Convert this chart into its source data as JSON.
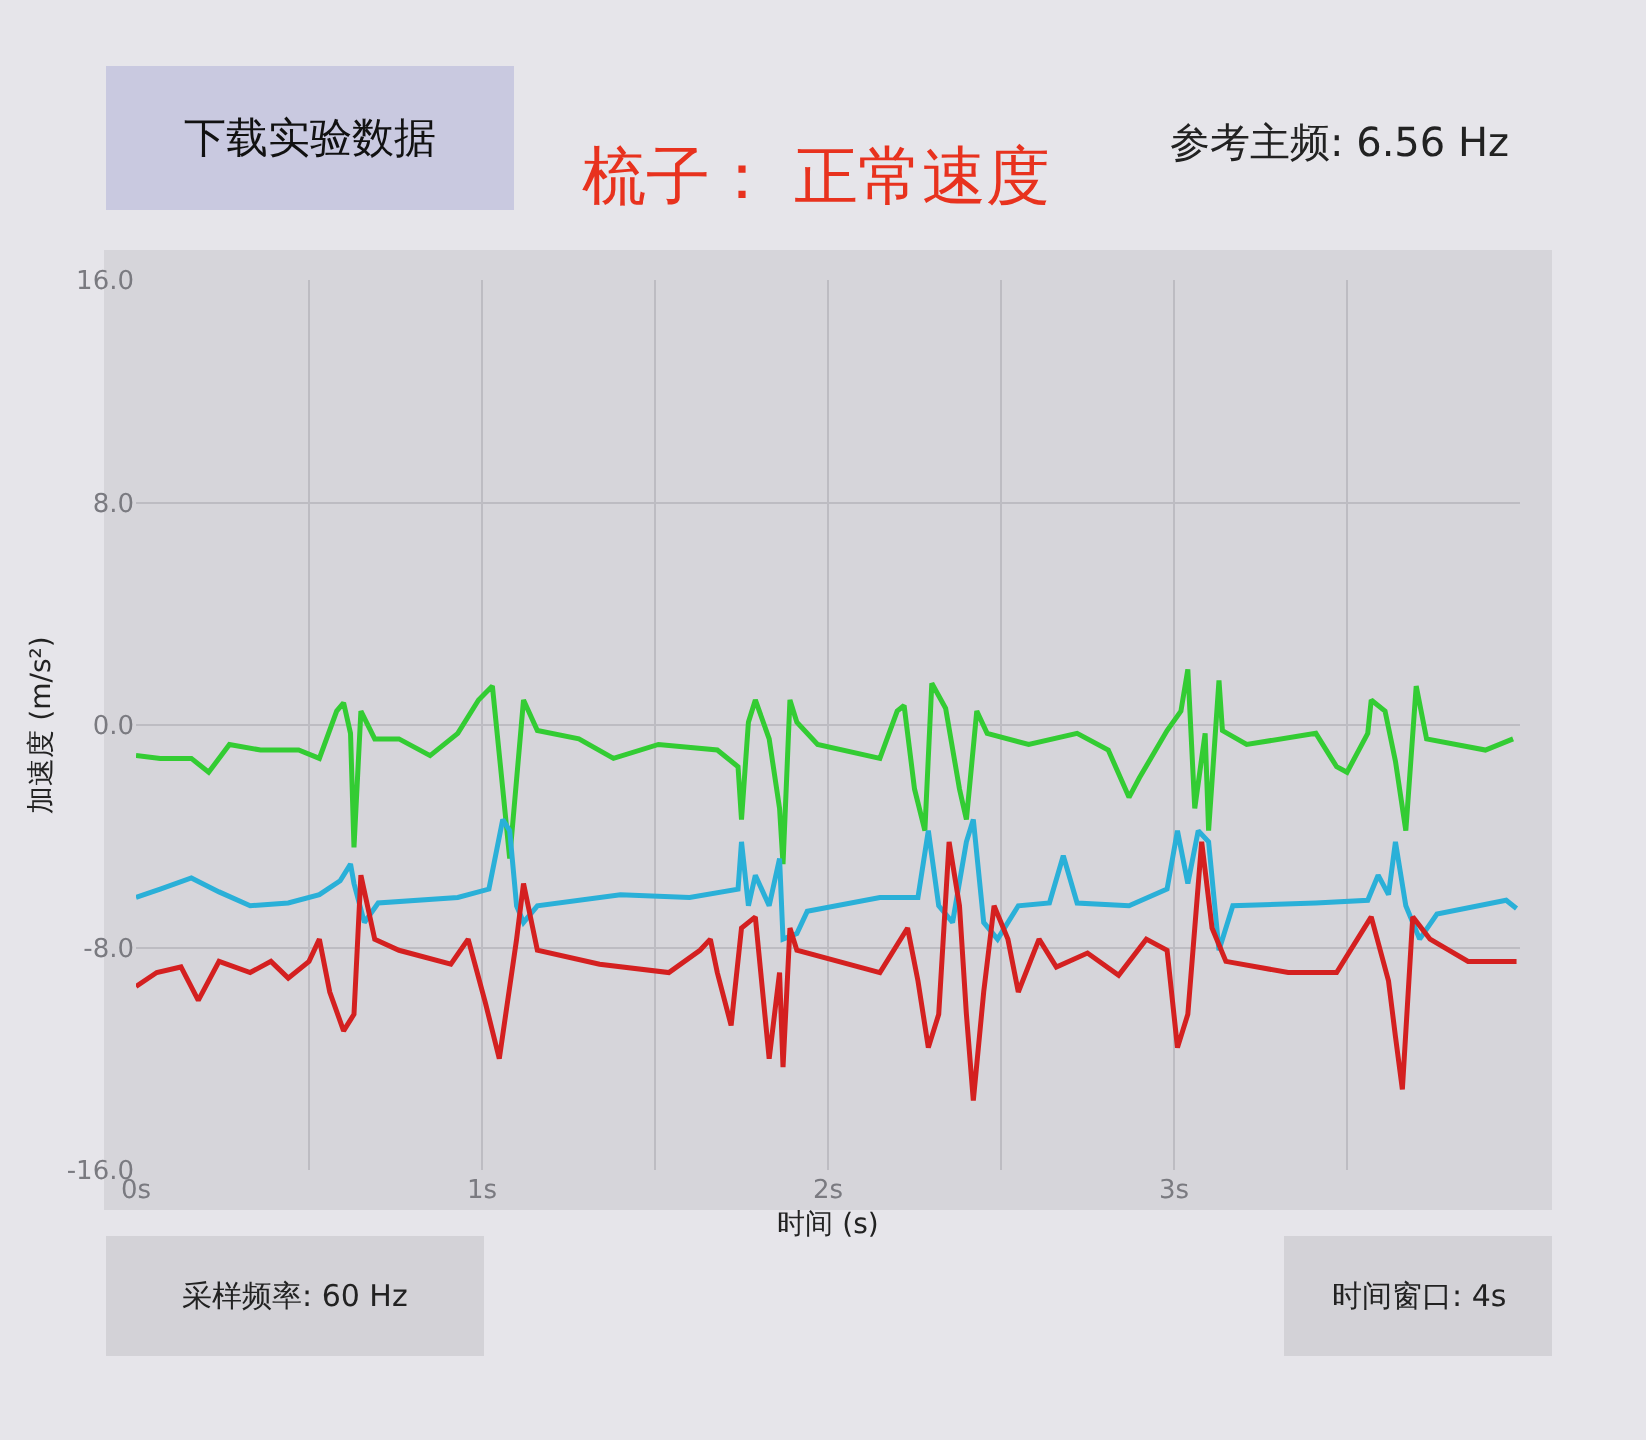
{
  "chart_data": {
    "type": "line",
    "title": "梳子： 正常速度",
    "xlabel": "时间 (s)",
    "ylabel": "加速度 (m/s²)",
    "annotations": [
      "下载实验数据",
      "参考主频: 6.56 Hz",
      "采样频率: 60 Hz",
      "时间窗口: 4s"
    ],
    "xlim": [
      0,
      4
    ],
    "ylim": [
      -16,
      16
    ],
    "xticks": [
      {
        "value": 0,
        "label": "0s"
      },
      {
        "value": 0.5,
        "label": null
      },
      {
        "value": 1,
        "label": "1s"
      },
      {
        "value": 1.5,
        "label": null
      },
      {
        "value": 2,
        "label": "2s"
      },
      {
        "value": 2.5,
        "label": null
      },
      {
        "value": 3,
        "label": "3s"
      },
      {
        "value": 3.5,
        "label": null
      }
    ],
    "yticks": [
      {
        "value": 16,
        "label": "16.0"
      },
      {
        "value": 8,
        "label": "8.0"
      },
      {
        "value": 0,
        "label": "0.0"
      },
      {
        "value": -8,
        "label": "-8.0"
      },
      {
        "value": -16,
        "label": "-16.0"
      }
    ],
    "grid": true,
    "marker": "none",
    "line_style": "solid",
    "series": [
      {
        "color": "#33cc33",
        "x": [
          0,
          0.07,
          0.16,
          0.21,
          0.27,
          0.36,
          0.47,
          0.53,
          0.58,
          0.6,
          0.62,
          0.63,
          0.65,
          0.69,
          0.76,
          0.85,
          0.93,
          0.99,
          1.03,
          1.06,
          1.08,
          1.12,
          1.16,
          1.28,
          1.38,
          1.51,
          1.68,
          1.74,
          1.75,
          1.77,
          1.79,
          1.83,
          1.86,
          1.87,
          1.89,
          1.91,
          1.97,
          2.15,
          2.2,
          2.22,
          2.25,
          2.28,
          2.3,
          2.34,
          2.38,
          2.4,
          2.43,
          2.46,
          2.58,
          2.72,
          2.81,
          2.87,
          2.9,
          2.98,
          3.02,
          3.04,
          3.06,
          3.09,
          3.1,
          3.13,
          3.14,
          3.21,
          3.41,
          3.47,
          3.5,
          3.56,
          3.57,
          3.61,
          3.64,
          3.67,
          3.7,
          3.73,
          3.9,
          3.98
        ],
        "values": [
          -1.1,
          -1.2,
          -1.2,
          -1.7,
          -0.7,
          -0.9,
          -0.9,
          -1.2,
          0.5,
          0.8,
          -0.3,
          -4.4,
          0.5,
          -0.5,
          -0.5,
          -1.1,
          -0.3,
          0.9,
          1.4,
          -2.3,
          -4.8,
          0.9,
          -0.2,
          -0.5,
          -1.2,
          -0.7,
          -0.9,
          -1.5,
          -3.4,
          0.1,
          0.9,
          -0.5,
          -3.0,
          -5.0,
          0.9,
          0.1,
          -0.7,
          -1.2,
          0.5,
          0.7,
          -2.3,
          -3.8,
          1.5,
          0.6,
          -2.3,
          -3.4,
          0.5,
          -0.3,
          -0.7,
          -0.3,
          -0.9,
          -2.6,
          -1.9,
          -0.2,
          0.5,
          2.0,
          -3.0,
          -0.3,
          -3.8,
          1.6,
          -0.2,
          -0.7,
          -0.3,
          -1.5,
          -1.7,
          -0.3,
          0.9,
          0.5,
          -1.3,
          -3.8,
          1.4,
          -0.5,
          -0.9,
          -0.5
        ]
      },
      {
        "color": "#2ab0d8",
        "x": [
          0,
          0.07,
          0.16,
          0.24,
          0.33,
          0.44,
          0.53,
          0.59,
          0.62,
          0.63,
          0.66,
          0.7,
          0.93,
          1.02,
          1.06,
          1.08,
          1.1,
          1.12,
          1.16,
          1.4,
          1.6,
          1.74,
          1.75,
          1.77,
          1.79,
          1.83,
          1.86,
          1.87,
          1.91,
          1.94,
          2.15,
          2.26,
          2.29,
          2.32,
          2.36,
          2.4,
          2.42,
          2.45,
          2.49,
          2.55,
          2.64,
          2.68,
          2.72,
          2.87,
          2.98,
          3.01,
          3.04,
          3.07,
          3.1,
          3.13,
          3.17,
          3.41,
          3.56,
          3.59,
          3.62,
          3.64,
          3.67,
          3.71,
          3.76,
          3.96,
          3.99
        ],
        "values": [
          -6.2,
          -5.9,
          -5.5,
          -6.0,
          -6.5,
          -6.4,
          -6.1,
          -5.6,
          -5.0,
          -5.7,
          -7.1,
          -6.4,
          -6.2,
          -5.9,
          -3.4,
          -3.8,
          -6.5,
          -7.1,
          -6.5,
          -6.1,
          -6.2,
          -5.9,
          -4.2,
          -6.5,
          -5.4,
          -6.5,
          -4.8,
          -7.7,
          -7.5,
          -6.7,
          -6.2,
          -6.2,
          -3.8,
          -6.5,
          -7.1,
          -4.2,
          -3.4,
          -7.1,
          -7.7,
          -6.5,
          -6.4,
          -4.7,
          -6.4,
          -6.5,
          -5.9,
          -3.8,
          -5.7,
          -3.8,
          -4.2,
          -8.1,
          -6.5,
          -6.4,
          -6.3,
          -5.4,
          -6.1,
          -4.2,
          -6.5,
          -7.7,
          -6.8,
          -6.3,
          -6.6
        ]
      },
      {
        "color": "#d42020",
        "x": [
          0,
          0.06,
          0.13,
          0.18,
          0.24,
          0.33,
          0.39,
          0.44,
          0.5,
          0.53,
          0.56,
          0.6,
          0.63,
          0.65,
          0.69,
          0.76,
          0.91,
          0.96,
          1.01,
          1.05,
          1.1,
          1.12,
          1.16,
          1.34,
          1.54,
          1.63,
          1.66,
          1.68,
          1.72,
          1.75,
          1.79,
          1.83,
          1.86,
          1.87,
          1.89,
          1.91,
          2.15,
          2.23,
          2.26,
          2.29,
          2.32,
          2.35,
          2.38,
          2.4,
          2.42,
          2.45,
          2.48,
          2.52,
          2.55,
          2.61,
          2.66,
          2.75,
          2.84,
          2.92,
          2.98,
          3.01,
          3.04,
          3.08,
          3.11,
          3.15,
          3.33,
          3.47,
          3.53,
          3.57,
          3.62,
          3.64,
          3.66,
          3.69,
          3.74,
          3.85,
          3.99
        ],
        "values": [
          -9.4,
          -8.9,
          -8.7,
          -9.9,
          -8.5,
          -8.9,
          -8.5,
          -9.1,
          -8.5,
          -7.7,
          -9.6,
          -11.0,
          -10.4,
          -5.4,
          -7.7,
          -8.1,
          -8.6,
          -7.7,
          -10.0,
          -12.0,
          -7.7,
          -5.7,
          -8.1,
          -8.6,
          -8.9,
          -8.1,
          -7.7,
          -8.9,
          -10.8,
          -7.3,
          -6.9,
          -12.0,
          -8.9,
          -12.3,
          -7.3,
          -8.1,
          -8.9,
          -7.3,
          -9.2,
          -11.6,
          -10.4,
          -4.2,
          -6.5,
          -10.4,
          -13.5,
          -9.6,
          -6.5,
          -7.7,
          -9.6,
          -7.7,
          -8.7,
          -8.2,
          -9.0,
          -7.7,
          -8.1,
          -11.6,
          -10.4,
          -4.2,
          -7.3,
          -8.5,
          -8.9,
          -8.9,
          -7.7,
          -6.9,
          -9.2,
          -11.2,
          -13.1,
          -6.9,
          -7.7,
          -8.5,
          -8.5
        ]
      }
    ]
  }
}
